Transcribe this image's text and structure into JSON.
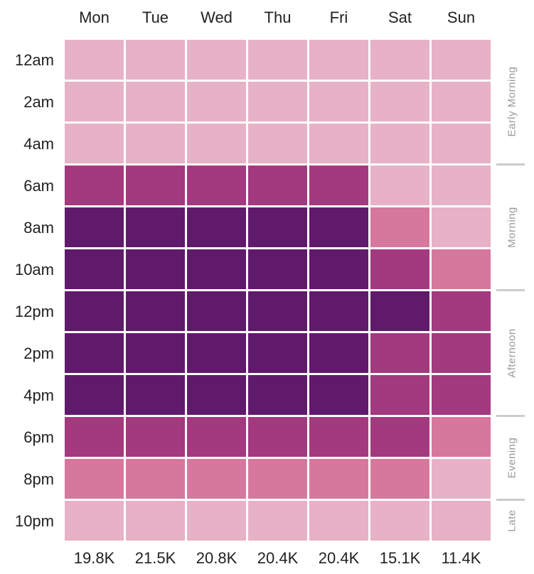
{
  "chart_data": {
    "type": "heatmap",
    "x": [
      "Mon",
      "Tue",
      "Wed",
      "Thu",
      "Fri",
      "Sat",
      "Sun"
    ],
    "y": [
      "12am",
      "2am",
      "4am",
      "6am",
      "8am",
      "10am",
      "12pm",
      "2pm",
      "4pm",
      "6pm",
      "8pm",
      "10pm"
    ],
    "levels": [
      [
        0,
        0,
        0,
        0,
        0,
        0,
        0
      ],
      [
        0,
        0,
        0,
        0,
        0,
        0,
        0
      ],
      [
        0,
        0,
        0,
        0,
        0,
        0,
        0
      ],
      [
        2,
        2,
        2,
        2,
        2,
        0,
        0
      ],
      [
        3,
        3,
        3,
        3,
        3,
        1,
        0
      ],
      [
        3,
        3,
        3,
        3,
        3,
        2,
        1
      ],
      [
        3,
        3,
        3,
        3,
        3,
        3,
        2
      ],
      [
        3,
        3,
        3,
        3,
        3,
        2,
        2
      ],
      [
        3,
        3,
        3,
        3,
        3,
        2,
        2
      ],
      [
        2,
        2,
        2,
        2,
        2,
        2,
        1
      ],
      [
        1,
        1,
        1,
        1,
        1,
        1,
        0
      ],
      [
        0,
        0,
        0,
        0,
        0,
        0,
        0
      ]
    ],
    "color_scale": [
      "#e7b2c6",
      "#d6789e",
      "#a3397f",
      "#601a6b"
    ],
    "column_totals": [
      "19.8K",
      "21.5K",
      "20.8K",
      "20.4K",
      "20.4K",
      "15.1K",
      "11.4K"
    ],
    "periods": [
      {
        "label": "Early Morning",
        "rows": [
          0,
          2
        ]
      },
      {
        "label": "Morning",
        "rows": [
          3,
          5
        ]
      },
      {
        "label": "Afternoon",
        "rows": [
          6,
          8
        ]
      },
      {
        "label": "Evening",
        "rows": [
          9,
          10
        ]
      },
      {
        "label": "Late",
        "rows": [
          11,
          11
        ]
      }
    ],
    "separator_color": "#cccccc"
  }
}
